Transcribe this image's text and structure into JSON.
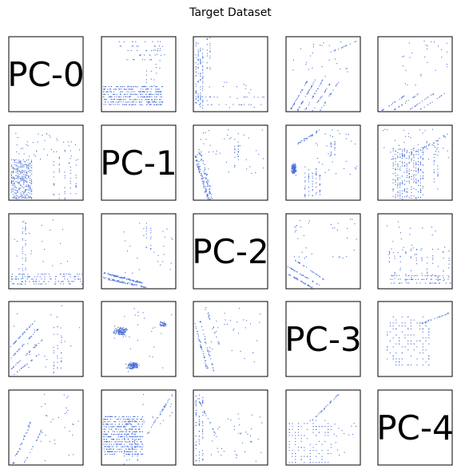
{
  "chart_data": {
    "type": "scatter",
    "title": "Target Dataset",
    "layout": "pairwise-matrix",
    "rows": 5,
    "cols": 5,
    "diagonal_labels": [
      "PC-0",
      "PC-1",
      "PC-2",
      "PC-3",
      "PC-4"
    ],
    "point_color": "#4a6fd8",
    "axes_ticks": "hidden",
    "grid": false,
    "panels": [
      {
        "row": 0,
        "col": 1,
        "x_var": "PC-1",
        "y_var": "PC-0",
        "pattern": "bottom-band-with-stripes"
      },
      {
        "row": 0,
        "col": 2,
        "x_var": "PC-2",
        "y_var": "PC-0",
        "pattern": "left-vertical-streaks"
      },
      {
        "row": 0,
        "col": 3,
        "x_var": "PC-3",
        "y_var": "PC-0",
        "pattern": "diagonal-streaks-lower"
      },
      {
        "row": 0,
        "col": 4,
        "x_var": "PC-4",
        "y_var": "PC-0",
        "pattern": "diagonal-streaks-sparse"
      },
      {
        "row": 1,
        "col": 0,
        "x_var": "PC-0",
        "y_var": "PC-1",
        "pattern": "vertical-columns-dense"
      },
      {
        "row": 1,
        "col": 2,
        "x_var": "PC-2",
        "y_var": "PC-1",
        "pattern": "left-diagonal-cluster"
      },
      {
        "row": 1,
        "col": 3,
        "x_var": "PC-3",
        "y_var": "PC-1",
        "pattern": "left-blob-with-streaks"
      },
      {
        "row": 1,
        "col": 4,
        "x_var": "PC-4",
        "y_var": "PC-1",
        "pattern": "vertical-columns-center"
      },
      {
        "row": 2,
        "col": 0,
        "x_var": "PC-0",
        "y_var": "PC-2",
        "pattern": "bottom-band-vertical"
      },
      {
        "row": 2,
        "col": 1,
        "x_var": "PC-1",
        "y_var": "PC-2",
        "pattern": "bottom-diagonal-band"
      },
      {
        "row": 2,
        "col": 3,
        "x_var": "PC-3",
        "y_var": "PC-2",
        "pattern": "diagonal-lines-lower-left"
      },
      {
        "row": 2,
        "col": 4,
        "x_var": "PC-4",
        "y_var": "PC-2",
        "pattern": "bottom-band-with-columns"
      },
      {
        "row": 3,
        "col": 0,
        "x_var": "PC-0",
        "y_var": "PC-3",
        "pattern": "diagonal-streaks-left"
      },
      {
        "row": 3,
        "col": 1,
        "x_var": "PC-1",
        "y_var": "PC-3",
        "pattern": "two-clusters"
      },
      {
        "row": 3,
        "col": 2,
        "x_var": "PC-2",
        "y_var": "PC-3",
        "pattern": "diagonal-descending"
      },
      {
        "row": 3,
        "col": 4,
        "x_var": "PC-4",
        "y_var": "PC-3",
        "pattern": "lattice-scatter"
      },
      {
        "row": 4,
        "col": 0,
        "x_var": "PC-0",
        "y_var": "PC-4",
        "pattern": "sparse-diagonal"
      },
      {
        "row": 4,
        "col": 1,
        "x_var": "PC-1",
        "y_var": "PC-4",
        "pattern": "horizontal-lines-block"
      },
      {
        "row": 4,
        "col": 2,
        "x_var": "PC-2",
        "y_var": "PC-4",
        "pattern": "left-vertical-sparse"
      },
      {
        "row": 4,
        "col": 3,
        "x_var": "PC-3",
        "y_var": "PC-4",
        "pattern": "lattice-scatter-lower-left"
      }
    ]
  }
}
